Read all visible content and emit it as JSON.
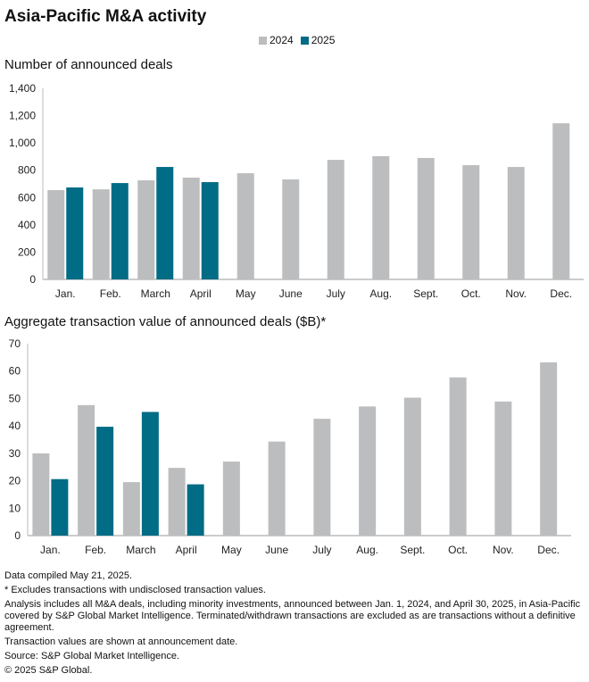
{
  "title": "Asia-Pacific M&A activity",
  "legend": [
    {
      "label": "2024",
      "color": "#BCBDBF"
    },
    {
      "label": "2025",
      "color": "#006C85"
    }
  ],
  "chart_data": [
    {
      "type": "bar",
      "title": "Number of announced deals",
      "categories": [
        "Jan.",
        "Feb.",
        "March",
        "April",
        "May",
        "June",
        "July",
        "Aug.",
        "Sept.",
        "Oct.",
        "Nov.",
        "Dec."
      ],
      "series": [
        {
          "name": "2024",
          "values": [
            654,
            660,
            726,
            746,
            778,
            733,
            876,
            903,
            890,
            837,
            824,
            1144
          ]
        },
        {
          "name": "2025",
          "values": [
            674,
            706,
            824,
            713,
            null,
            null,
            null,
            null,
            null,
            null,
            null,
            null
          ]
        }
      ],
      "yticks": [
        "0",
        "200",
        "400",
        "600",
        "800",
        "1,000",
        "1,200",
        "1,400"
      ],
      "ylim": [
        0,
        1400
      ],
      "grid": false,
      "legend_position": "top-center"
    },
    {
      "type": "bar",
      "title": "Aggregate transaction value of announced deals ($B)*",
      "categories": [
        "Jan.",
        "Feb.",
        "March",
        "April",
        "May",
        "June",
        "July",
        "Aug.",
        "Sept.",
        "Oct.",
        "Nov.",
        "Dec."
      ],
      "series": [
        {
          "name": "2024",
          "values": [
            30.0,
            47.6,
            19.5,
            24.7,
            27.0,
            34.3,
            42.6,
            47.1,
            50.3,
            57.7,
            48.9,
            63.2
          ]
        },
        {
          "name": "2025",
          "values": [
            20.6,
            39.7,
            45.1,
            18.7,
            null,
            null,
            null,
            null,
            null,
            null,
            null,
            null
          ]
        }
      ],
      "yticks": [
        "0",
        "10",
        "20",
        "30",
        "40",
        "50",
        "60",
        "70"
      ],
      "ylim": [
        0,
        70
      ],
      "grid": false
    }
  ],
  "notes": [
    "Data compiled May 21, 2025.",
    "* Excludes transactions with undisclosed transaction values.",
    "Analysis includes all M&A deals, including minority investments, announced between Jan. 1, 2024, and April 30, 2025, in Asia-Pacific covered by S&P Global Market Intelligence. Terminated/withdrawn transactions are excluded as are transactions without a definitive agreement.",
    "Transaction values are shown at announcement date.",
    "Source: S&P Global Market Intelligence.",
    "© 2025 S&P Global."
  ]
}
